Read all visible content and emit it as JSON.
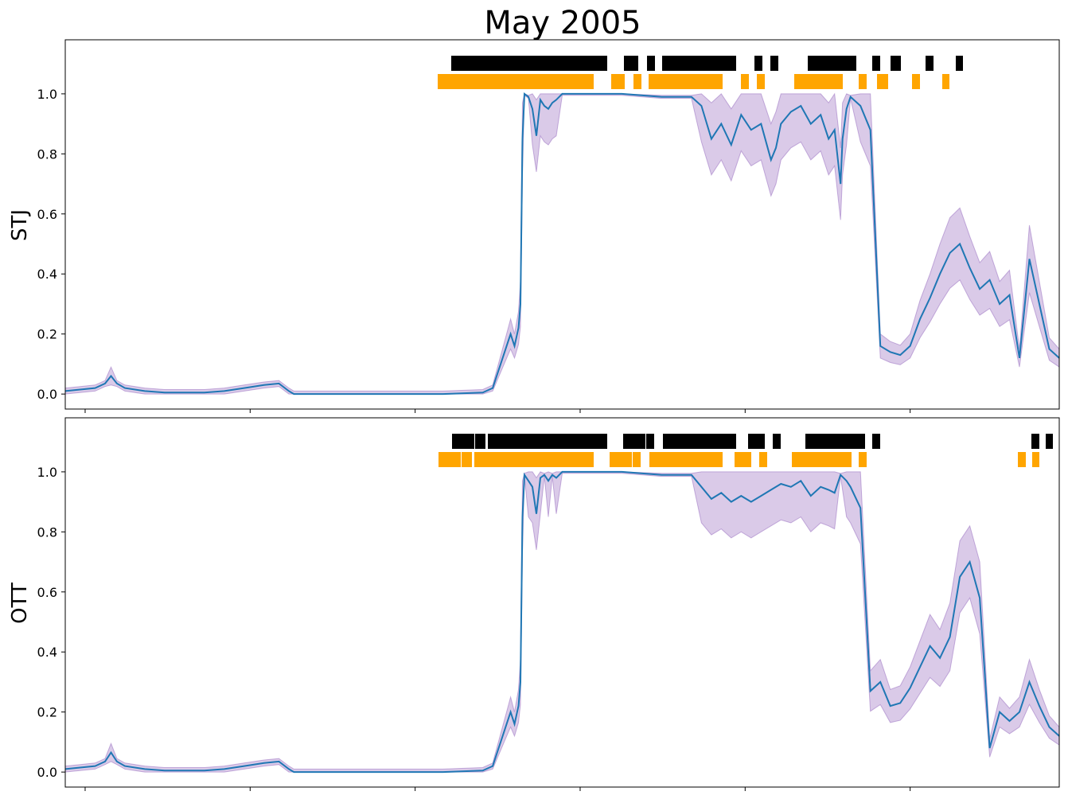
{
  "title": "May 2005",
  "colors": {
    "line": "#1f77b4",
    "band": "#9467bd",
    "bar_top": "#000000",
    "bar_bottom": "#ffa500"
  },
  "chart_data": [
    {
      "type": "line",
      "ylabel": "STJ",
      "ylim": [
        -0.05,
        1.18
      ],
      "xlim": [
        0,
        1000
      ],
      "yticks": [
        "0.0",
        "0.2",
        "0.4",
        "0.6",
        "0.8",
        "1.0"
      ],
      "xticks": [
        20,
        186,
        352,
        518,
        684,
        850
      ],
      "series": [
        {
          "x": [
            0,
            15,
            30,
            40,
            46,
            52,
            60,
            80,
            100,
            120,
            140,
            160,
            180,
            200,
            215,
            225,
            230,
            235,
            242,
            250,
            260,
            270,
            280,
            250,
            300,
            245,
            260,
            295,
            310,
            250,
            330,
            250,
            340,
            350,
            360,
            370,
            380,
            420,
            430,
            446,
            448,
            452,
            456,
            458,
            460,
            462,
            466,
            470,
            474,
            478,
            482,
            486,
            490,
            494,
            500,
            520,
            560,
            600,
            620,
            630,
            640,
            650,
            660,
            670,
            680,
            690,
            700,
            710,
            715,
            720,
            730,
            740,
            750,
            760,
            768,
            774,
            780,
            782,
            786,
            790,
            800,
            810,
            820,
            830,
            840,
            850,
            860,
            870,
            880,
            890,
            900,
            910,
            920,
            930,
            940,
            950,
            960,
            970,
            980,
            990,
            1000
          ],
          "y": [
            0.01,
            0.015,
            0.02,
            0.035,
            0.06,
            0.035,
            0.02,
            0.01,
            0.005,
            0.005,
            0.005,
            0.01,
            0.02,
            0.03,
            0.035,
            0.01,
            0.0,
            0.0,
            0.0,
            0.0,
            0.0,
            0.0,
            0.0,
            0.0,
            0.0,
            0.0,
            0.0,
            0.0,
            0.0,
            0.0,
            0.0,
            0.0,
            0.0,
            0.0,
            0.0,
            0.0,
            0.0,
            0.005,
            0.02,
            0.18,
            0.2,
            0.16,
            0.22,
            0.3,
            0.85,
            1.0,
            0.99,
            0.95,
            0.86,
            0.98,
            0.96,
            0.95,
            0.97,
            0.98,
            1.0,
            1.0,
            1.0,
            0.99,
            0.99,
            0.99,
            0.96,
            0.85,
            0.9,
            0.83,
            0.93,
            0.88,
            0.9,
            0.78,
            0.82,
            0.9,
            0.94,
            0.96,
            0.9,
            0.93,
            0.85,
            0.88,
            0.7,
            0.85,
            0.95,
            0.99,
            0.96,
            0.88,
            0.16,
            0.14,
            0.13,
            0.16,
            0.25,
            0.32,
            0.4,
            0.47,
            0.5,
            0.42,
            0.35,
            0.38,
            0.3,
            0.33,
            0.12,
            0.45,
            0.3,
            0.15,
            0.12
          ]
        }
      ]
    },
    {
      "type": "line",
      "ylabel": "OTT",
      "ylim": [
        -0.05,
        1.18
      ],
      "xlim": [
        0,
        1000
      ],
      "yticks": [
        "0.0",
        "0.2",
        "0.4",
        "0.6",
        "0.8",
        "1.0"
      ],
      "xticks": [
        20,
        186,
        352,
        518,
        684,
        850
      ],
      "series": [
        {
          "x": [
            0,
            15,
            30,
            40,
            46,
            52,
            60,
            80,
            100,
            120,
            140,
            160,
            180,
            200,
            215,
            225,
            230,
            235,
            242,
            250,
            260,
            270,
            280,
            290,
            300,
            310,
            320,
            330,
            340,
            350,
            360,
            370,
            380,
            420,
            430,
            446,
            448,
            452,
            456,
            458,
            460,
            462,
            466,
            470,
            474,
            478,
            482,
            486,
            490,
            494,
            500,
            520,
            560,
            600,
            620,
            630,
            640,
            650,
            660,
            670,
            680,
            690,
            700,
            710,
            720,
            730,
            740,
            750,
            760,
            768,
            774,
            780,
            786,
            790,
            800,
            810,
            820,
            830,
            840,
            850,
            860,
            870,
            880,
            890,
            900,
            910,
            920,
            930,
            940,
            950,
            960,
            970,
            980,
            990,
            1000
          ],
          "y": [
            0.01,
            0.015,
            0.02,
            0.035,
            0.065,
            0.035,
            0.02,
            0.01,
            0.005,
            0.005,
            0.005,
            0.01,
            0.02,
            0.03,
            0.035,
            0.01,
            0.0,
            0.0,
            0.0,
            0.0,
            0.0,
            0.0,
            0.0,
            0.0,
            0.0,
            0.0,
            0.0,
            0.0,
            0.0,
            0.0,
            0.0,
            0.0,
            0.0,
            0.005,
            0.02,
            0.18,
            0.2,
            0.16,
            0.22,
            0.3,
            0.85,
            0.99,
            0.97,
            0.95,
            0.86,
            0.98,
            0.99,
            0.97,
            0.99,
            0.98,
            1.0,
            1.0,
            1.0,
            0.99,
            0.99,
            0.99,
            0.95,
            0.91,
            0.93,
            0.9,
            0.92,
            0.9,
            0.92,
            0.94,
            0.96,
            0.95,
            0.97,
            0.92,
            0.95,
            0.94,
            0.93,
            0.99,
            0.97,
            0.95,
            0.88,
            0.27,
            0.3,
            0.22,
            0.23,
            0.28,
            0.35,
            0.42,
            0.38,
            0.45,
            0.65,
            0.7,
            0.58,
            0.08,
            0.2,
            0.17,
            0.2,
            0.3,
            0.22,
            0.15,
            0.12
          ]
        }
      ]
    }
  ]
}
